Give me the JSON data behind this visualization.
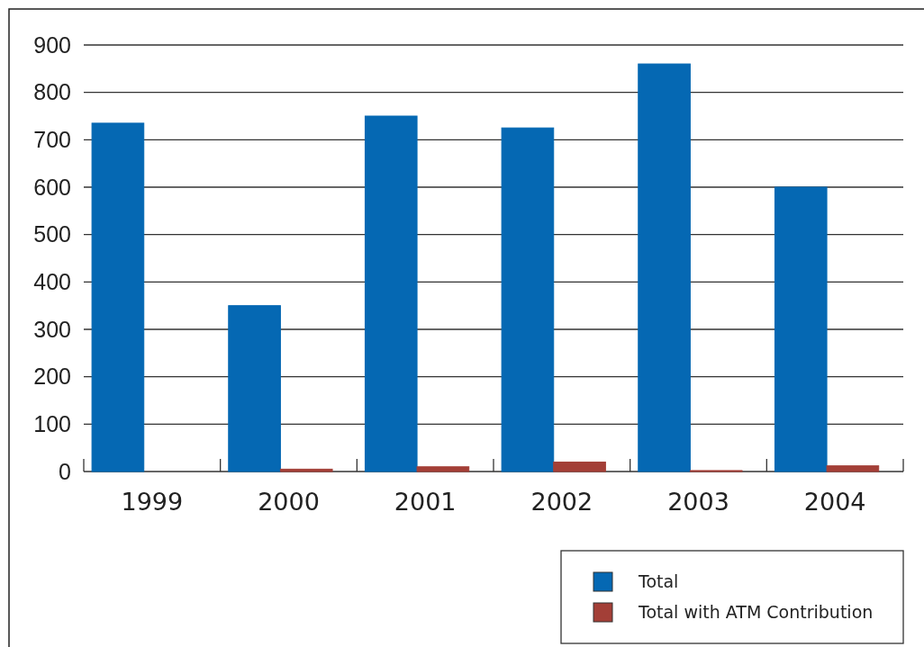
{
  "chart_data": {
    "type": "bar",
    "categories": [
      "1999",
      "2000",
      "2001",
      "2002",
      "2003",
      "2004"
    ],
    "series": [
      {
        "name": "Total",
        "color": "#0568b3",
        "values": [
          735,
          350,
          750,
          725,
          860,
          600
        ]
      },
      {
        "name": "Total with ATM Contribution",
        "color": "#a33f37",
        "values": [
          0,
          5,
          10,
          20,
          2,
          12
        ]
      }
    ],
    "ylim": [
      0,
      900
    ],
    "yticks": [
      0,
      100,
      200,
      300,
      400,
      500,
      600,
      700,
      800,
      900
    ],
    "grid": "y",
    "legend": "bottom right"
  }
}
